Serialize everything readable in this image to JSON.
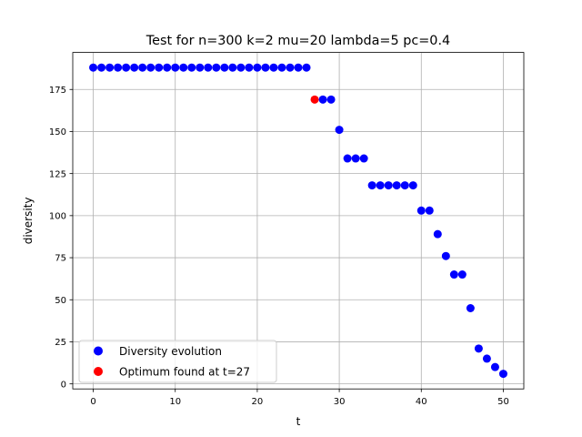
{
  "chart_data": {
    "type": "scatter",
    "title": "Test for n=300 k=2 mu=20 lambda=5 pc=0.4",
    "xlabel": "t",
    "ylabel": "diversity",
    "xlim": [
      -2.5,
      52.5
    ],
    "ylim": [
      -3,
      197
    ],
    "xticks": [
      0,
      10,
      20,
      30,
      40,
      50
    ],
    "yticks": [
      0,
      25,
      50,
      75,
      100,
      125,
      150,
      175
    ],
    "grid": true,
    "legend_position": "lower-left",
    "series": [
      {
        "name": "Diversity evolution",
        "color": "#0000ff",
        "x": [
          0,
          1,
          2,
          3,
          4,
          5,
          6,
          7,
          8,
          9,
          10,
          11,
          12,
          13,
          14,
          15,
          16,
          17,
          18,
          19,
          20,
          21,
          22,
          23,
          24,
          25,
          26,
          28,
          29,
          30,
          31,
          32,
          33,
          34,
          35,
          36,
          37,
          38,
          39,
          40,
          41,
          42,
          43,
          44,
          45,
          46,
          47,
          48,
          49,
          50
        ],
        "y": [
          188,
          188,
          188,
          188,
          188,
          188,
          188,
          188,
          188,
          188,
          188,
          188,
          188,
          188,
          188,
          188,
          188,
          188,
          188,
          188,
          188,
          188,
          188,
          188,
          188,
          188,
          188,
          169,
          169,
          151,
          134,
          134,
          134,
          118,
          118,
          118,
          118,
          118,
          118,
          103,
          103,
          89,
          76,
          65,
          65,
          45,
          21,
          15,
          10,
          6
        ]
      },
      {
        "name": "Optimum found at t=27",
        "color": "#ff0000",
        "x": [
          27
        ],
        "y": [
          169
        ]
      }
    ]
  }
}
